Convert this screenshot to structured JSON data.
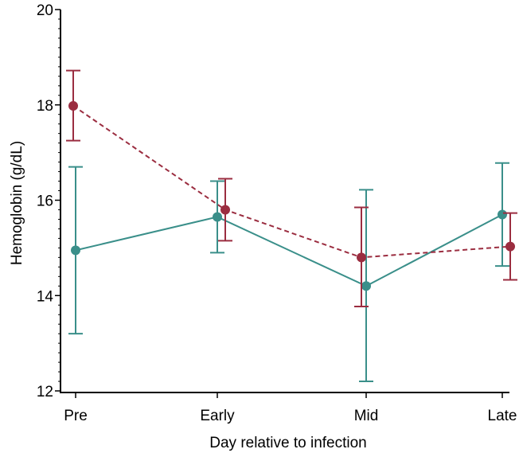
{
  "chart_data": {
    "type": "line",
    "title": "",
    "xlabel": "Day relative to infection",
    "ylabel": "Hemoglobin (g/dL)",
    "categories": [
      "Pre",
      "Early",
      "Mid",
      "Late"
    ],
    "ylim": [
      12,
      20
    ],
    "yticks": [
      12,
      14,
      16,
      18,
      20
    ],
    "grid": false,
    "legend": "none",
    "series": [
      {
        "color": "#3a8f8a",
        "line_style": "solid",
        "values": [
          14.95,
          15.65,
          14.2,
          15.7
        ],
        "error_low": [
          13.2,
          14.9,
          12.2,
          14.62
        ],
        "error_high": [
          16.7,
          16.4,
          16.22,
          16.78
        ]
      },
      {
        "color": "#9b2d40",
        "line_style": "dashed",
        "values": [
          17.98,
          15.8,
          14.8,
          15.03
        ],
        "error_low": [
          17.25,
          15.15,
          13.77,
          14.33
        ],
        "error_high": [
          18.72,
          16.45,
          15.85,
          15.73
        ]
      }
    ]
  }
}
